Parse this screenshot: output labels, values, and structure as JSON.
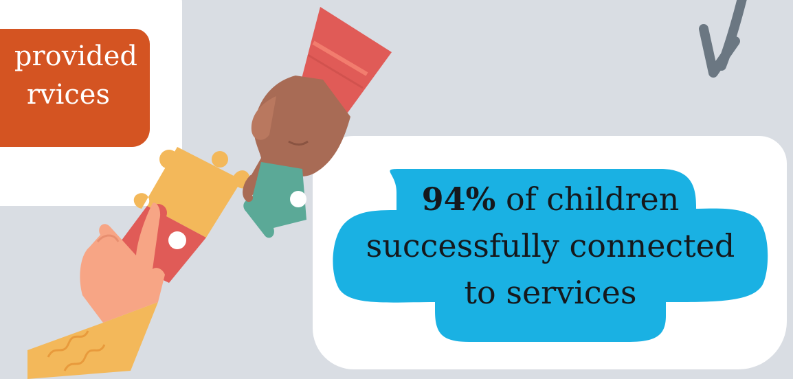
{
  "left_callout": {
    "line1": "provided",
    "line2": "rvices",
    "bg_color": "#d45422"
  },
  "right_callout": {
    "stat": "94%",
    "line1_rest": " of children",
    "line2": "successfully connected",
    "line3": "to services",
    "bg_color": "#1ab1e3"
  },
  "colors": {
    "background": "#d9dde3",
    "card": "#ffffff",
    "arrow": "#6b7782",
    "puzzle_yellow": "#f3b85a",
    "puzzle_red": "#e05b57",
    "puzzle_green": "#5ba997",
    "sleeve_red": "#e05b57",
    "sleeve_yellow": "#f3b85a",
    "skin_dark": "#a86b55",
    "skin_light": "#f7a585"
  },
  "icons": [
    "arrow-down-left-icon",
    "puzzle-pieces-icon",
    "reaching-hand-top-icon",
    "reaching-hand-bottom-icon"
  ]
}
